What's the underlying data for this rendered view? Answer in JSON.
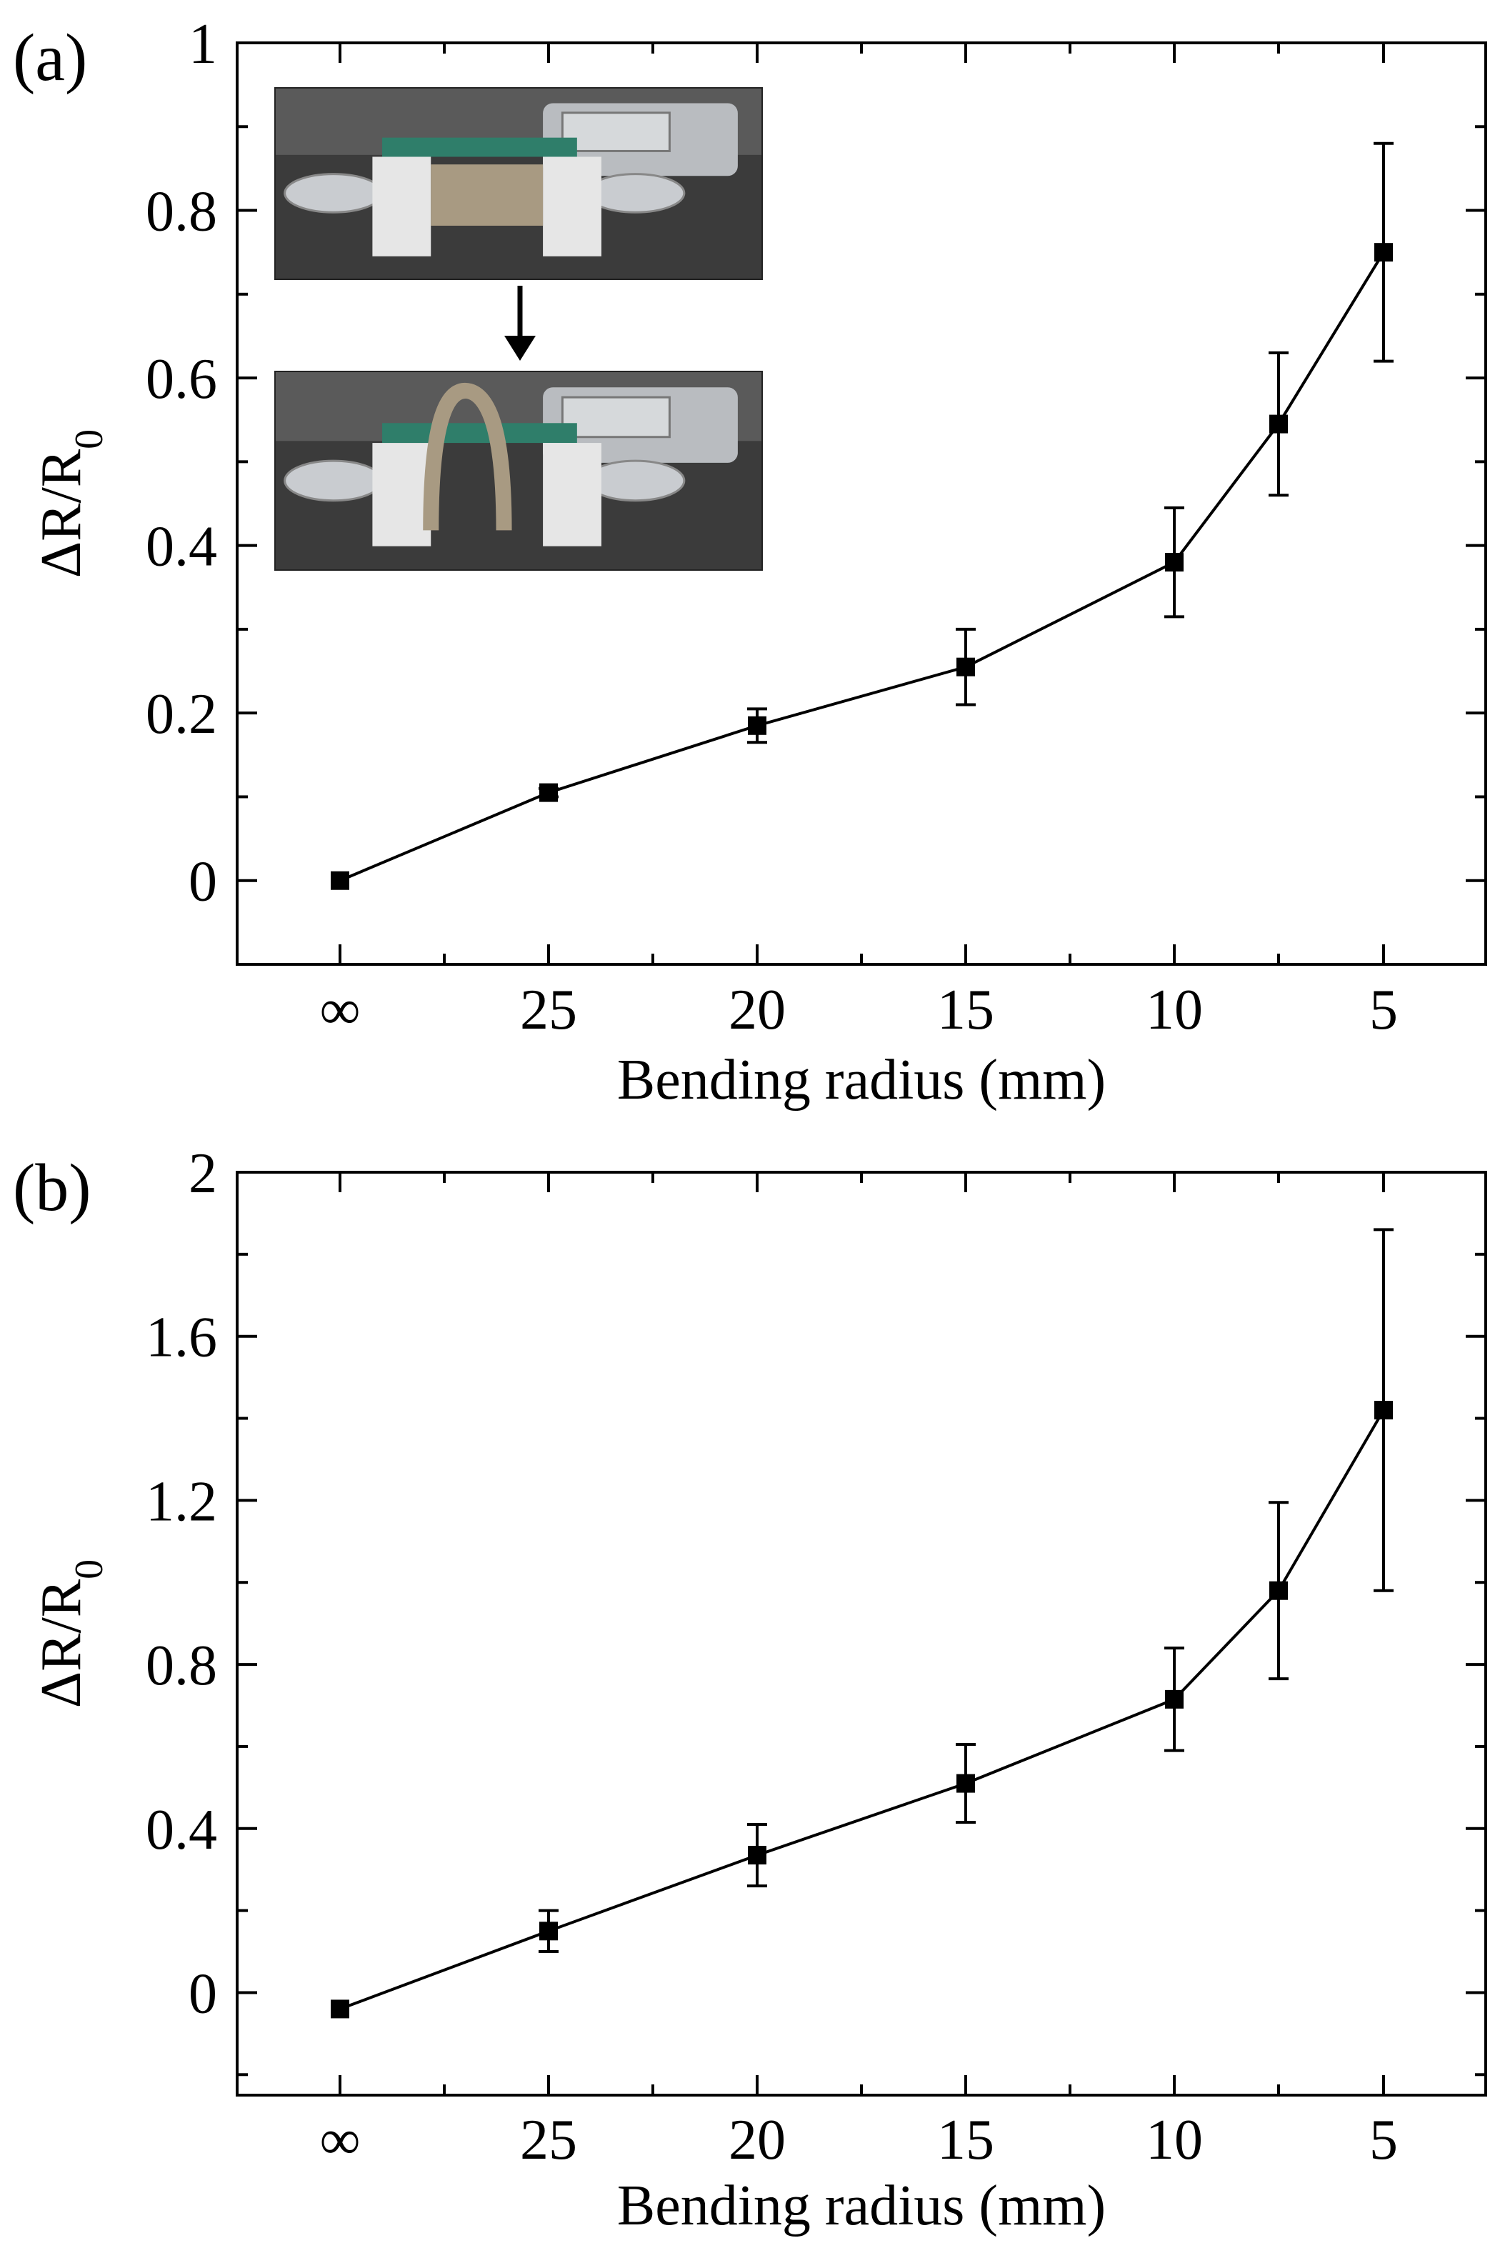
{
  "chart_data": [
    {
      "type": "line",
      "panel_label": "(a)",
      "xlabel": "Bending radius (mm)",
      "ylabel": "ΔR/R",
      "ylabel_subscript": "0",
      "x_tick_labels": [
        "∞",
        "25",
        "20",
        "15",
        "10",
        "5"
      ],
      "y_tick_labels": [
        "0",
        "0.2",
        "0.4",
        "0.6",
        "0.8",
        "1"
      ],
      "ylim": [
        -0.1,
        1.0
      ],
      "x_axis_reversed": true,
      "markers": "filled-square",
      "series": [
        {
          "x": [
            "∞",
            25,
            20,
            15,
            10,
            7.5,
            5
          ],
          "y": [
            0.0,
            0.105,
            0.185,
            0.255,
            0.38,
            0.545,
            0.75
          ],
          "error": [
            0.0,
            0.005,
            0.02,
            0.045,
            0.065,
            0.085,
            0.13
          ]
        }
      ],
      "inset": "photos of sample clamped flat (top) and bent (bottom), arrow between"
    },
    {
      "type": "line",
      "panel_label": "(b)",
      "xlabel": "Bending radius (mm)",
      "ylabel": "ΔR/R",
      "ylabel_subscript": "0",
      "x_tick_labels": [
        "∞",
        "25",
        "20",
        "15",
        "10",
        "5"
      ],
      "y_tick_labels": [
        "0",
        "0.4",
        "0.8",
        "1.2",
        "1.6",
        "2"
      ],
      "ylim": [
        -0.25,
        2.0
      ],
      "x_axis_reversed": true,
      "markers": "filled-square",
      "series": [
        {
          "x": [
            "∞",
            25,
            20,
            15,
            10,
            7.5,
            5
          ],
          "y": [
            -0.04,
            0.15,
            0.335,
            0.51,
            0.715,
            0.98,
            1.42
          ],
          "error": [
            0.0,
            0.05,
            0.075,
            0.095,
            0.125,
            0.215,
            0.44
          ]
        }
      ]
    }
  ]
}
